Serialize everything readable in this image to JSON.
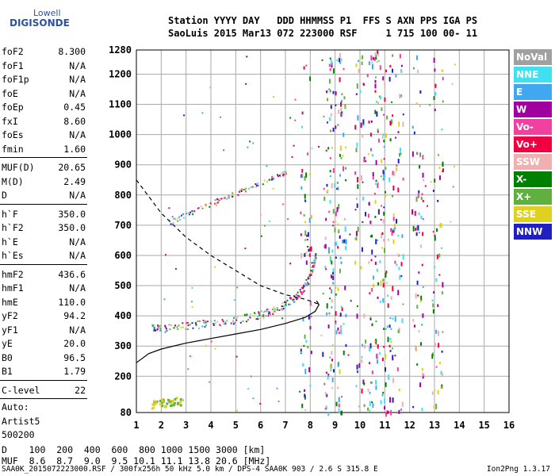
{
  "logo": {
    "line1": "Lowell",
    "line2": "DIGISONDE"
  },
  "header": {
    "line1": "Station YYYY DAY   DDD HHMMSS P1  FFS S AXN PPS IGA PS",
    "line2": "SaoLuis 2015 Mar13 072 223000 RSF     1 715 100 00- 11"
  },
  "params": [
    {
      "name": "foF2",
      "value": "8.300"
    },
    {
      "name": "foF1",
      "value": "N/A"
    },
    {
      "name": "foF1p",
      "value": "N/A"
    },
    {
      "name": "foE",
      "value": "N/A"
    },
    {
      "name": "foEp",
      "value": "0.45"
    },
    {
      "name": "fxI",
      "value": "8.60"
    },
    {
      "name": "foEs",
      "value": "N/A"
    },
    {
      "name": "fmin",
      "value": "1.60"
    },
    {
      "sep": true
    },
    {
      "name": "MUF(D)",
      "value": "20.65"
    },
    {
      "name": "M(D)",
      "value": "2.49"
    },
    {
      "name": "D",
      "value": "N/A"
    },
    {
      "sep": true
    },
    {
      "name": "h`F",
      "value": "350.0"
    },
    {
      "name": "h`F2",
      "value": "350.0"
    },
    {
      "name": "h`E",
      "value": "N/A"
    },
    {
      "name": "h`Es",
      "value": "N/A"
    },
    {
      "sep": true
    },
    {
      "name": "hmF2",
      "value": "436.6"
    },
    {
      "name": "hmF1",
      "value": "N/A"
    },
    {
      "name": "hmE",
      "value": "110.0"
    },
    {
      "name": "yF2",
      "value": "94.2"
    },
    {
      "name": "yF1",
      "value": "N/A"
    },
    {
      "name": "yE",
      "value": "20.0"
    },
    {
      "name": "B0",
      "value": "96.5"
    },
    {
      "name": "B1",
      "value": "1.79"
    },
    {
      "sep": true
    },
    {
      "name": "C-level",
      "value": "22"
    },
    {
      "sep": true
    }
  ],
  "auto": [
    "Auto:",
    "Artist5",
    "500200"
  ],
  "legend": [
    {
      "label": "NoVal",
      "color": "#a0a0a0"
    },
    {
      "label": "NNE",
      "color": "#40e0f0"
    },
    {
      "label": "E",
      "color": "#40a8f0"
    },
    {
      "label": "W",
      "color": "#a000a0"
    },
    {
      "label": "Vo-",
      "color": "#f040a0"
    },
    {
      "label": "Vo+",
      "color": "#f00040"
    },
    {
      "label": "SSW",
      "color": "#f0b0b0"
    },
    {
      "label": "X-",
      "color": "#008000"
    },
    {
      "label": "X+",
      "color": "#60b040"
    },
    {
      "label": "SSE",
      "color": "#e0d020"
    },
    {
      "label": "NNW",
      "color": "#2020c0"
    }
  ],
  "chart_data": {
    "type": "scatter",
    "xlim": [
      1,
      16
    ],
    "ylim": [
      80,
      1280
    ],
    "x_ticks": [
      1,
      2,
      3,
      4,
      5,
      6,
      7,
      8,
      9,
      10,
      11,
      12,
      13,
      14,
      15,
      16
    ],
    "y_ticks": [
      80,
      200,
      300,
      400,
      500,
      600,
      700,
      800,
      900,
      1000,
      1100,
      1200,
      1280
    ],
    "grid": true,
    "profile_solid": [
      [
        1,
        245
      ],
      [
        1.5,
        275
      ],
      [
        2,
        290
      ],
      [
        3,
        310
      ],
      [
        4,
        325
      ],
      [
        5,
        340
      ],
      [
        6,
        355
      ],
      [
        7,
        375
      ],
      [
        7.8,
        395
      ],
      [
        8.2,
        415
      ],
      [
        8.35,
        437
      ],
      [
        8.25,
        450
      ]
    ],
    "profile_dashed": [
      [
        1,
        850
      ],
      [
        2,
        740
      ],
      [
        3,
        660
      ],
      [
        4,
        600
      ],
      [
        5,
        550
      ],
      [
        6,
        500
      ],
      [
        7,
        470
      ],
      [
        7.8,
        455
      ],
      [
        8.3,
        440
      ]
    ],
    "o_trace": [
      [
        1.6,
        360
      ],
      [
        2,
        360
      ],
      [
        3,
        368
      ],
      [
        4,
        378
      ],
      [
        5,
        390
      ],
      [
        6,
        405
      ],
      [
        6.5,
        418
      ],
      [
        7,
        440
      ],
      [
        7.5,
        470
      ],
      [
        7.9,
        520
      ],
      [
        8.1,
        570
      ],
      [
        8.2,
        600
      ]
    ],
    "x_trace": [
      [
        2.3,
        710
      ],
      [
        2.7,
        725
      ],
      [
        3.2,
        745
      ],
      [
        3.8,
        765
      ],
      [
        4.3,
        785
      ],
      [
        4.8,
        800
      ],
      [
        5.3,
        818
      ],
      [
        5.8,
        835
      ],
      [
        6.4,
        855
      ],
      [
        6.8,
        870
      ],
      [
        7.1,
        880
      ]
    ],
    "noise_columns": [
      7.8,
      8.7,
      9.0,
      9.2,
      10.0,
      10.5,
      10.8,
      11.1,
      11.5,
      12.3,
      13.1
    ],
    "es_patches": [
      [
        1.8,
        110
      ],
      [
        2.2,
        115
      ],
      [
        2.6,
        120
      ]
    ]
  },
  "bottom": {
    "row1": "D    100  200  400  600  800 1000 1500 3000 [km]",
    "row2": "MUF  8.6  8.7  9.0  9.5 10.1 11.1 13.8 20.6 [MHz]"
  },
  "footer": {
    "left": "SAA0K_2015072223000.RSF / 300fx256h 50 kHz 5.0 km / DPS-4 SAA0K 903 / 2.6 S 315.8 E",
    "right": "Ion2Png 1.3.17"
  }
}
